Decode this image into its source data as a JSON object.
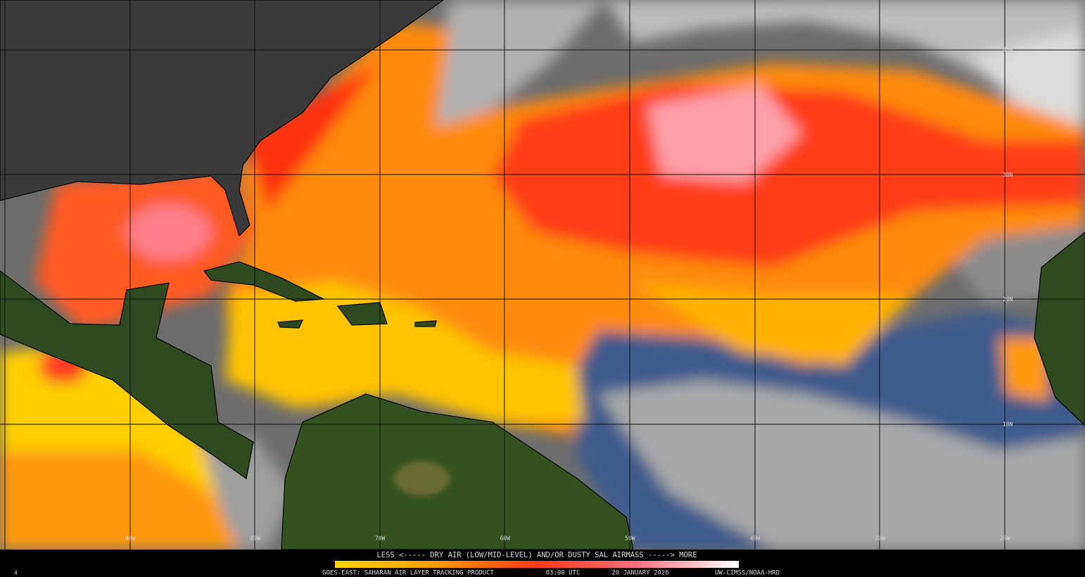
{
  "map": {
    "lat_labels": [
      "40N",
      "30N",
      "20N",
      "10N"
    ],
    "lon_labels": [
      "90W",
      "80W",
      "70W",
      "60W",
      "50W",
      "40W",
      "30W",
      "20W"
    ]
  },
  "legend": {
    "text": "LESS <----- DRY AIR (LOW/MID-LEVEL) AND/OR DUSTY SAL AIRMASS -----> MORE"
  },
  "footer": {
    "corner": "4",
    "product": "GOES-EAST: SAHARAN AIR LAYER TRACKING PRODUCT",
    "time": "03:00 UTC",
    "date": "20 JANUARY 2026",
    "credit": "UW-CIMSS/NOAA-HRD"
  }
}
